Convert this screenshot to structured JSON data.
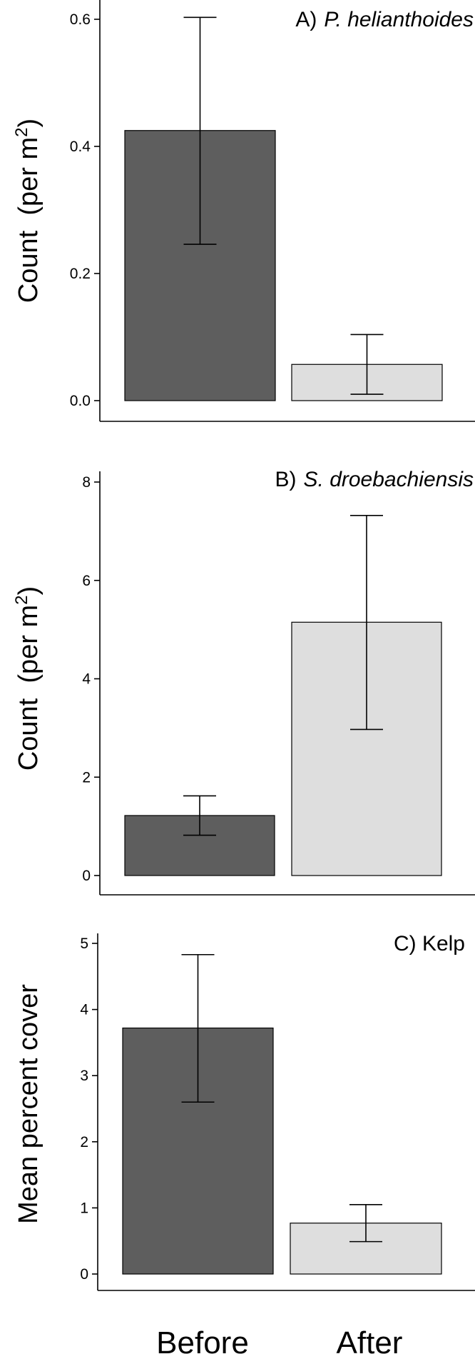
{
  "chart_data": [
    {
      "type": "bar",
      "panel_label": "A)",
      "panel_species": "P. helianthoides",
      "categories": [
        "Before",
        "After"
      ],
      "values": [
        0.425,
        0.057
      ],
      "error_low": [
        0.246,
        0.01
      ],
      "error_high": [
        0.603,
        0.104
      ],
      "ylabel": "Count  (per m",
      "ylabel_sup": "2",
      "ylabel_close": ")",
      "ylim": [
        0,
        0.63
      ],
      "yticks": [
        "0.0",
        "0.2",
        "0.4",
        "0.6"
      ],
      "ytick_values": [
        0,
        0.2,
        0.4,
        0.6
      ]
    },
    {
      "type": "bar",
      "panel_label": "B)",
      "panel_species": "S. droebachiensis",
      "categories": [
        "Before",
        "After"
      ],
      "values": [
        1.22,
        5.15
      ],
      "error_low": [
        0.82,
        2.97
      ],
      "error_high": [
        1.62,
        7.32
      ],
      "ylabel": "Count  (per m",
      "ylabel_sup": "2",
      "ylabel_close": ")",
      "ylim": [
        0,
        8.4
      ],
      "yticks": [
        "0",
        "2",
        "4",
        "6",
        "8"
      ],
      "ytick_values": [
        0,
        2,
        4,
        6,
        8
      ]
    },
    {
      "type": "bar",
      "panel_label": "C) Kelp",
      "panel_species": "",
      "categories": [
        "Before",
        "After"
      ],
      "values": [
        3.72,
        0.77
      ],
      "error_low": [
        2.6,
        0.49
      ],
      "error_high": [
        4.83,
        1.05
      ],
      "ylabel": "Mean percent cover",
      "ylabel_sup": "",
      "ylabel_close": "",
      "ylim": [
        0,
        5.1
      ],
      "yticks": [
        "0",
        "1",
        "2",
        "3",
        "4",
        "5"
      ],
      "ytick_values": [
        0,
        1,
        2,
        3,
        4,
        5
      ]
    }
  ],
  "x_categories": [
    "Before",
    "After"
  ],
  "colors": {
    "before_bar": "#5e5e5e",
    "after_bar": "#dedede",
    "axis": "#000000",
    "background": "#ffffff"
  }
}
